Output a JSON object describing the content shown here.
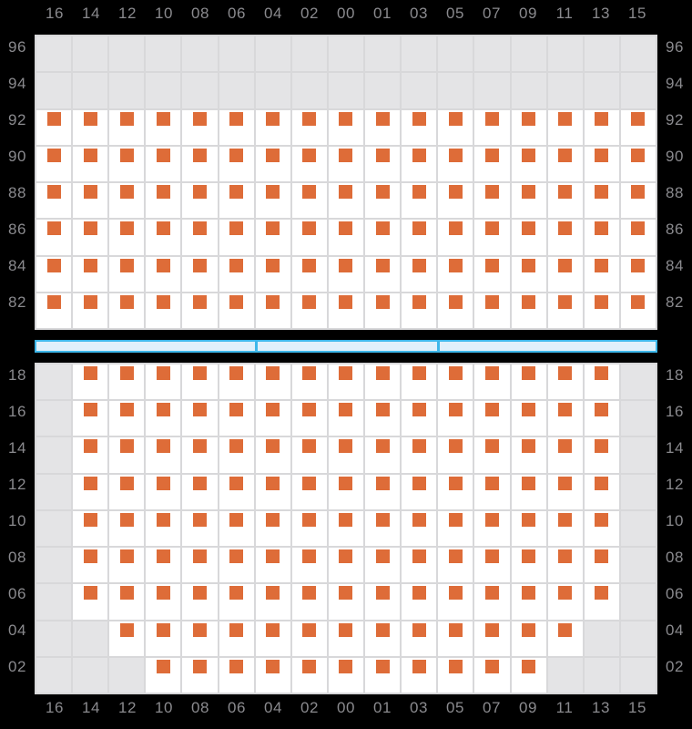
{
  "colors": {
    "background": "#000000",
    "label": "#8a8a8e",
    "gridline": "#d8d8da",
    "cell_on": "#ffffff",
    "cell_off": "#e4e4e6",
    "marker": "#de6c38",
    "corridor_border": "#3eb7ea",
    "corridor_fill": "#dff0fb"
  },
  "chart_data": {
    "type": "heatmap",
    "marker_shape": "square",
    "grid": "on",
    "legend": "none",
    "cell_value_meaning": {
      "1": "white cell with orange square marker",
      "0": "gray empty cell"
    },
    "x_tick_labels": [
      "16",
      "14",
      "12",
      "10",
      "08",
      "06",
      "04",
      "02",
      "00",
      "01",
      "03",
      "05",
      "07",
      "09",
      "11",
      "13",
      "15"
    ],
    "panels": [
      {
        "name": "upper",
        "y_tick_labels": [
          "96",
          "94",
          "92",
          "90",
          "88",
          "86",
          "84",
          "82"
        ],
        "rows": [
          [
            0,
            0,
            0,
            0,
            0,
            0,
            0,
            0,
            0,
            0,
            0,
            0,
            0,
            0,
            0,
            0,
            0
          ],
          [
            0,
            0,
            0,
            0,
            0,
            0,
            0,
            0,
            0,
            0,
            0,
            0,
            0,
            0,
            0,
            0,
            0
          ],
          [
            1,
            1,
            1,
            1,
            1,
            1,
            1,
            1,
            1,
            1,
            1,
            1,
            1,
            1,
            1,
            1,
            1
          ],
          [
            1,
            1,
            1,
            1,
            1,
            1,
            1,
            1,
            1,
            1,
            1,
            1,
            1,
            1,
            1,
            1,
            1
          ],
          [
            1,
            1,
            1,
            1,
            1,
            1,
            1,
            1,
            1,
            1,
            1,
            1,
            1,
            1,
            1,
            1,
            1
          ],
          [
            1,
            1,
            1,
            1,
            1,
            1,
            1,
            1,
            1,
            1,
            1,
            1,
            1,
            1,
            1,
            1,
            1
          ],
          [
            1,
            1,
            1,
            1,
            1,
            1,
            1,
            1,
            1,
            1,
            1,
            1,
            1,
            1,
            1,
            1,
            1
          ],
          [
            1,
            1,
            1,
            1,
            1,
            1,
            1,
            1,
            1,
            1,
            1,
            1,
            1,
            1,
            1,
            1,
            1
          ]
        ]
      },
      {
        "name": "lower",
        "y_tick_labels": [
          "18",
          "16",
          "14",
          "12",
          "10",
          "08",
          "06",
          "04",
          "02"
        ],
        "rows": [
          [
            0,
            1,
            1,
            1,
            1,
            1,
            1,
            1,
            1,
            1,
            1,
            1,
            1,
            1,
            1,
            1,
            0
          ],
          [
            0,
            1,
            1,
            1,
            1,
            1,
            1,
            1,
            1,
            1,
            1,
            1,
            1,
            1,
            1,
            1,
            0
          ],
          [
            0,
            1,
            1,
            1,
            1,
            1,
            1,
            1,
            1,
            1,
            1,
            1,
            1,
            1,
            1,
            1,
            0
          ],
          [
            0,
            1,
            1,
            1,
            1,
            1,
            1,
            1,
            1,
            1,
            1,
            1,
            1,
            1,
            1,
            1,
            0
          ],
          [
            0,
            1,
            1,
            1,
            1,
            1,
            1,
            1,
            1,
            1,
            1,
            1,
            1,
            1,
            1,
            1,
            0
          ],
          [
            0,
            1,
            1,
            1,
            1,
            1,
            1,
            1,
            1,
            1,
            1,
            1,
            1,
            1,
            1,
            1,
            0
          ],
          [
            0,
            1,
            1,
            1,
            1,
            1,
            1,
            1,
            1,
            1,
            1,
            1,
            1,
            1,
            1,
            1,
            0
          ],
          [
            0,
            0,
            1,
            1,
            1,
            1,
            1,
            1,
            1,
            1,
            1,
            1,
            1,
            1,
            1,
            0,
            0
          ],
          [
            0,
            0,
            0,
            1,
            1,
            1,
            1,
            1,
            1,
            1,
            1,
            1,
            1,
            1,
            0,
            0,
            0
          ]
        ]
      }
    ],
    "corridor": {
      "segments_in_columns": [
        6,
        5,
        6
      ]
    }
  }
}
